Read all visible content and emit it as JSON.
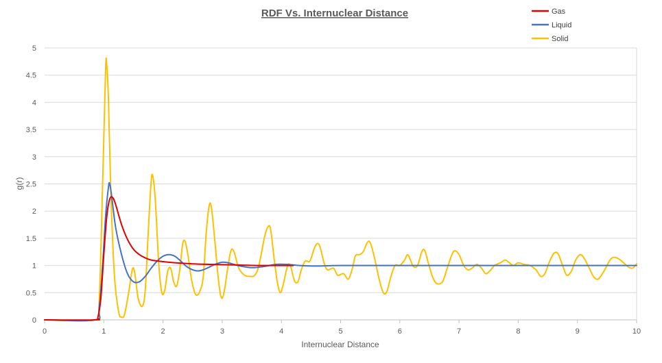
{
  "chart_data": {
    "type": "line",
    "title": "RDF Vs. Internuclear Distance",
    "xlabel": "Internuclear Distance",
    "ylabel": "g(r)",
    "xlim": [
      0,
      10
    ],
    "ylim": [
      0,
      5
    ],
    "x_ticks": [
      "0",
      "1",
      "2",
      "3",
      "4",
      "5",
      "6",
      "7",
      "8",
      "9",
      "10"
    ],
    "y_ticks": [
      "0",
      "0.5",
      "1",
      "1.5",
      "2",
      "2.5",
      "3",
      "3.5",
      "4",
      "4.5",
      "5"
    ],
    "grid": "horizontal",
    "legend_position": "top-right",
    "series": [
      {
        "name": "Gas",
        "color": "#e00000",
        "points": [
          [
            0,
            0
          ],
          [
            0.85,
            0
          ],
          [
            0.9,
            0.05
          ],
          [
            0.95,
            0.4
          ],
          [
            1.0,
            1.2
          ],
          [
            1.05,
            1.9
          ],
          [
            1.1,
            2.22
          ],
          [
            1.15,
            2.25
          ],
          [
            1.2,
            2.12
          ],
          [
            1.3,
            1.75
          ],
          [
            1.4,
            1.48
          ],
          [
            1.5,
            1.3
          ],
          [
            1.6,
            1.2
          ],
          [
            1.7,
            1.14
          ],
          [
            1.8,
            1.1
          ],
          [
            2.0,
            1.07
          ],
          [
            2.2,
            1.05
          ],
          [
            2.5,
            1.03
          ],
          [
            2.8,
            1.02
          ],
          [
            3.2,
            1.01
          ],
          [
            3.6,
            1.0
          ],
          [
            4.0,
            1.0
          ],
          [
            4.2,
            1.0
          ]
        ]
      },
      {
        "name": "Liquid",
        "color": "#4472c4",
        "points": [
          [
            0,
            0
          ],
          [
            0.85,
            0
          ],
          [
            0.92,
            0.2
          ],
          [
            0.98,
            1.0
          ],
          [
            1.03,
            1.9
          ],
          [
            1.08,
            2.45
          ],
          [
            1.1,
            2.5
          ],
          [
            1.13,
            2.3
          ],
          [
            1.2,
            1.7
          ],
          [
            1.3,
            1.2
          ],
          [
            1.4,
            0.85
          ],
          [
            1.5,
            0.7
          ],
          [
            1.6,
            0.7
          ],
          [
            1.7,
            0.8
          ],
          [
            1.8,
            0.95
          ],
          [
            1.9,
            1.08
          ],
          [
            2.0,
            1.17
          ],
          [
            2.1,
            1.2
          ],
          [
            2.2,
            1.17
          ],
          [
            2.3,
            1.08
          ],
          [
            2.4,
            0.98
          ],
          [
            2.5,
            0.92
          ],
          [
            2.6,
            0.9
          ],
          [
            2.7,
            0.93
          ],
          [
            2.8,
            0.98
          ],
          [
            2.9,
            1.03
          ],
          [
            3.0,
            1.06
          ],
          [
            3.1,
            1.05
          ],
          [
            3.2,
            1.02
          ],
          [
            3.3,
            0.99
          ],
          [
            3.5,
            0.96
          ],
          [
            3.7,
            0.98
          ],
          [
            3.9,
            1.02
          ],
          [
            4.1,
            1.02
          ],
          [
            4.3,
            1.0
          ],
          [
            4.6,
            0.99
          ],
          [
            5.0,
            1.0
          ],
          [
            6.0,
            1.0
          ],
          [
            8.0,
            1.0
          ],
          [
            10.0,
            1.0
          ]
        ]
      },
      {
        "name": "Solid",
        "color": "#ffc000",
        "points": [
          [
            0,
            0
          ],
          [
            0.85,
            0
          ],
          [
            0.92,
            0.3
          ],
          [
            0.98,
            2.5
          ],
          [
            1.03,
            4.6
          ],
          [
            1.05,
            4.68
          ],
          [
            1.08,
            4.0
          ],
          [
            1.12,
            2.3
          ],
          [
            1.18,
            0.8
          ],
          [
            1.25,
            0.15
          ],
          [
            1.3,
            0.05
          ],
          [
            1.35,
            0.1
          ],
          [
            1.42,
            0.5
          ],
          [
            1.48,
            0.92
          ],
          [
            1.52,
            0.88
          ],
          [
            1.58,
            0.4
          ],
          [
            1.65,
            0.25
          ],
          [
            1.7,
            0.55
          ],
          [
            1.75,
            1.6
          ],
          [
            1.8,
            2.55
          ],
          [
            1.83,
            2.63
          ],
          [
            1.87,
            2.2
          ],
          [
            1.93,
            1.0
          ],
          [
            1.98,
            0.5
          ],
          [
            2.03,
            0.55
          ],
          [
            2.08,
            0.9
          ],
          [
            2.13,
            0.95
          ],
          [
            2.18,
            0.7
          ],
          [
            2.23,
            0.62
          ],
          [
            2.28,
            0.9
          ],
          [
            2.33,
            1.38
          ],
          [
            2.37,
            1.45
          ],
          [
            2.42,
            1.2
          ],
          [
            2.48,
            0.75
          ],
          [
            2.55,
            0.47
          ],
          [
            2.62,
            0.52
          ],
          [
            2.68,
            0.8
          ],
          [
            2.73,
            1.6
          ],
          [
            2.78,
            2.1
          ],
          [
            2.82,
            2.05
          ],
          [
            2.88,
            1.4
          ],
          [
            2.93,
            0.8
          ],
          [
            2.98,
            0.42
          ],
          [
            3.03,
            0.5
          ],
          [
            3.1,
            1.0
          ],
          [
            3.15,
            1.28
          ],
          [
            3.2,
            1.25
          ],
          [
            3.28,
            0.95
          ],
          [
            3.38,
            0.82
          ],
          [
            3.48,
            0.8
          ],
          [
            3.55,
            0.82
          ],
          [
            3.62,
            1.0
          ],
          [
            3.72,
            1.55
          ],
          [
            3.78,
            1.72
          ],
          [
            3.82,
            1.65
          ],
          [
            3.88,
            1.1
          ],
          [
            3.93,
            0.7
          ],
          [
            3.98,
            0.5
          ],
          [
            4.03,
            0.65
          ],
          [
            4.1,
            0.98
          ],
          [
            4.15,
            1.0
          ],
          [
            4.22,
            0.72
          ],
          [
            4.28,
            0.7
          ],
          [
            4.33,
            0.9
          ],
          [
            4.4,
            1.08
          ],
          [
            4.48,
            1.08
          ],
          [
            4.55,
            1.3
          ],
          [
            4.6,
            1.4
          ],
          [
            4.65,
            1.35
          ],
          [
            4.72,
            1.05
          ],
          [
            4.78,
            0.92
          ],
          [
            4.88,
            0.95
          ],
          [
            4.95,
            0.82
          ],
          [
            5.05,
            0.85
          ],
          [
            5.13,
            0.75
          ],
          [
            5.2,
            0.95
          ],
          [
            5.25,
            1.18
          ],
          [
            5.32,
            1.2
          ],
          [
            5.38,
            1.25
          ],
          [
            5.45,
            1.42
          ],
          [
            5.5,
            1.42
          ],
          [
            5.57,
            1.15
          ],
          [
            5.65,
            0.75
          ],
          [
            5.72,
            0.5
          ],
          [
            5.78,
            0.52
          ],
          [
            5.85,
            0.8
          ],
          [
            5.92,
            1.0
          ],
          [
            6.0,
            1.0
          ],
          [
            6.08,
            1.1
          ],
          [
            6.13,
            1.2
          ],
          [
            6.18,
            1.1
          ],
          [
            6.23,
            0.98
          ],
          [
            6.3,
            1.0
          ],
          [
            6.37,
            1.25
          ],
          [
            6.42,
            1.28
          ],
          [
            6.48,
            1.05
          ],
          [
            6.55,
            0.8
          ],
          [
            6.62,
            0.67
          ],
          [
            6.72,
            0.7
          ],
          [
            6.8,
            0.95
          ],
          [
            6.88,
            1.2
          ],
          [
            6.93,
            1.27
          ],
          [
            7.0,
            1.2
          ],
          [
            7.08,
            1.0
          ],
          [
            7.15,
            0.92
          ],
          [
            7.22,
            0.95
          ],
          [
            7.3,
            1.02
          ],
          [
            7.38,
            0.95
          ],
          [
            7.45,
            0.85
          ],
          [
            7.52,
            0.9
          ],
          [
            7.6,
            1.0
          ],
          [
            7.7,
            1.05
          ],
          [
            7.78,
            1.1
          ],
          [
            7.85,
            1.05
          ],
          [
            7.92,
            1.0
          ],
          [
            8.0,
            1.05
          ],
          [
            8.1,
            1.02
          ],
          [
            8.2,
            1.0
          ],
          [
            8.3,
            0.92
          ],
          [
            8.38,
            0.8
          ],
          [
            8.45,
            0.85
          ],
          [
            8.52,
            1.05
          ],
          [
            8.6,
            1.22
          ],
          [
            8.67,
            1.22
          ],
          [
            8.75,
            1.0
          ],
          [
            8.82,
            0.82
          ],
          [
            8.9,
            0.9
          ],
          [
            8.97,
            1.1
          ],
          [
            9.05,
            1.2
          ],
          [
            9.12,
            1.12
          ],
          [
            9.2,
            0.95
          ],
          [
            9.27,
            0.8
          ],
          [
            9.35,
            0.75
          ],
          [
            9.45,
            0.9
          ],
          [
            9.55,
            1.1
          ],
          [
            9.62,
            1.15
          ],
          [
            9.7,
            1.12
          ],
          [
            9.78,
            1.05
          ],
          [
            9.85,
            0.98
          ],
          [
            9.93,
            0.95
          ],
          [
            10.0,
            1.03
          ]
        ]
      }
    ]
  }
}
